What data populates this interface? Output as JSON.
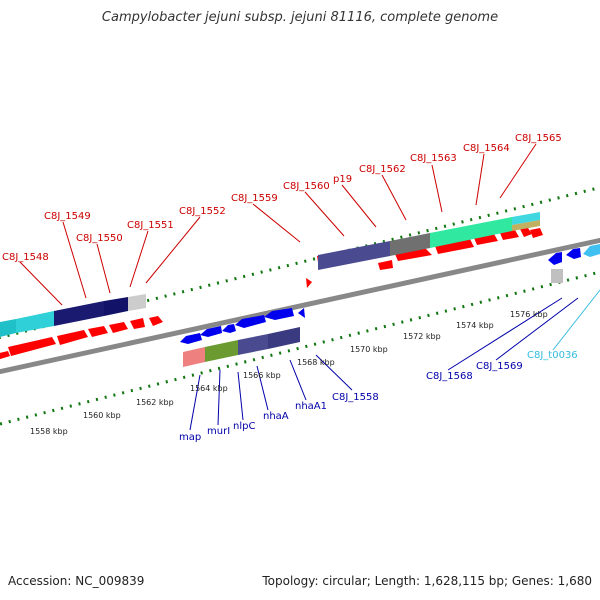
{
  "title": "Campylobacter jejuni subsp. jejuni 81116, complete genome",
  "footer": {
    "accession": "Accession: NC_009839",
    "summary": "Topology: circular; Length: 1,628,115 bp; Genes: 1,680"
  },
  "colors": {
    "forward_label": "#cc0000",
    "reverse_label": "#0000aa",
    "trna_label": "#33bbdd",
    "forward_gene": "#ff0000",
    "reverse_gene": "#0000ee",
    "backbone": "#888888",
    "ticks": "#117711"
  },
  "forward_labels": [
    "C8J_1548",
    "C8J_1549",
    "C8J_1550",
    "C8J_1551",
    "C8J_1552",
    "C8J_1559",
    "C8J_1560",
    "p19",
    "C8J_1562",
    "C8J_1563",
    "C8J_1564",
    "C8J_1565"
  ],
  "reverse_labels": [
    "map",
    "murI",
    "nlpC",
    "nhaA",
    "nhaA1",
    "C8J_1558",
    "C8J_1568",
    "C8J_1569"
  ],
  "trna_labels": [
    "C8J_t0036"
  ],
  "scale_labels": [
    "1558 kbp",
    "1560 kbp",
    "1562 kbp",
    "1564 kbp",
    "1566 kbp",
    "1568 kbp",
    "1570 kbp",
    "1572 kbp",
    "1574 kbp",
    "1576 kbp"
  ]
}
